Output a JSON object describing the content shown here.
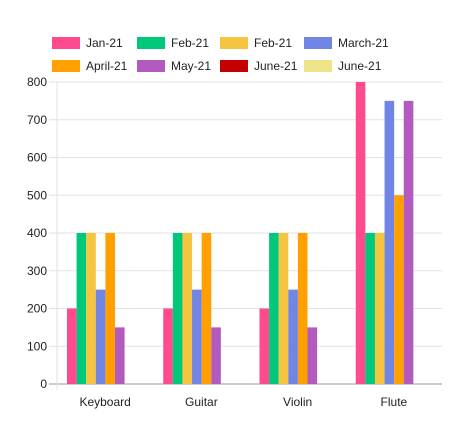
{
  "chart_data": {
    "type": "bar",
    "categories": [
      "Keyboard",
      "Guitar",
      "Violin",
      "Flute"
    ],
    "series": [
      {
        "name": "Jan-21",
        "color": "#ff4a8d",
        "values": [
          200,
          200,
          200,
          800
        ]
      },
      {
        "name": "Feb-21",
        "color": "#00c87a",
        "values": [
          400,
          400,
          400,
          400
        ]
      },
      {
        "name": "Feb-21",
        "color": "#f5c542",
        "values": [
          400,
          400,
          400,
          400
        ]
      },
      {
        "name": "March-21",
        "color": "#7185e6",
        "values": [
          250,
          250,
          250,
          750
        ]
      },
      {
        "name": "April-21",
        "color": "#ffa000",
        "values": [
          400,
          400,
          400,
          500
        ]
      },
      {
        "name": "May-21",
        "color": "#b25abe",
        "values": [
          150,
          150,
          150,
          750
        ]
      },
      {
        "name": "June-21",
        "color": "#c40000",
        "values": [
          0,
          0,
          0,
          0
        ]
      },
      {
        "name": "June-21",
        "color": "#eee58a",
        "values": [
          0,
          0,
          0,
          0
        ]
      }
    ],
    "yticks": [
      0,
      100,
      200,
      300,
      400,
      500,
      600,
      700,
      800
    ],
    "ylim": [
      0,
      800
    ],
    "grid": true,
    "legend_position": "top"
  }
}
